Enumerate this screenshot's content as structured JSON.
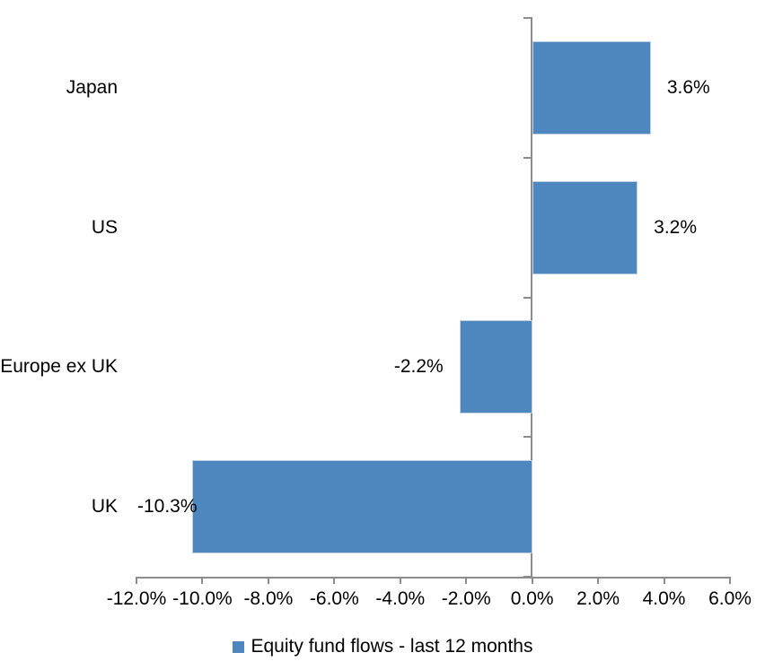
{
  "chart_data": {
    "type": "bar",
    "orientation": "horizontal",
    "title": "",
    "xlabel": "",
    "ylabel": "",
    "categories": [
      "Japan",
      "US",
      "Europe ex UK",
      "UK"
    ],
    "series": [
      {
        "name": "Equity fund flows - last 12 months",
        "values": [
          3.6,
          3.2,
          -2.2,
          -10.3
        ],
        "data_labels": [
          "3.6%",
          "3.2%",
          "-2.2%",
          "-10.3%"
        ]
      }
    ],
    "xlim": [
      -12,
      6
    ],
    "x_tick_step": 2,
    "x_tick_values": [
      -12,
      -10,
      -8,
      -6,
      -4,
      -2,
      0,
      2,
      4,
      6
    ],
    "x_tick_labels": [
      "-12.0%",
      "-10.0%",
      "-8.0%",
      "-6.0%",
      "-4.0%",
      "-2.0%",
      "0.0%",
      "2.0%",
      "4.0%",
      "6.0%"
    ],
    "grid": false,
    "legend_position": "bottom",
    "colors": {
      "bar_fill": "#4e87be",
      "bar_border": "#bdd0e4",
      "axis": "#8c8c8c",
      "text": "#000000",
      "background": "#ffffff"
    }
  },
  "legend": {
    "label": "Equity fund flows - last 12 months"
  }
}
